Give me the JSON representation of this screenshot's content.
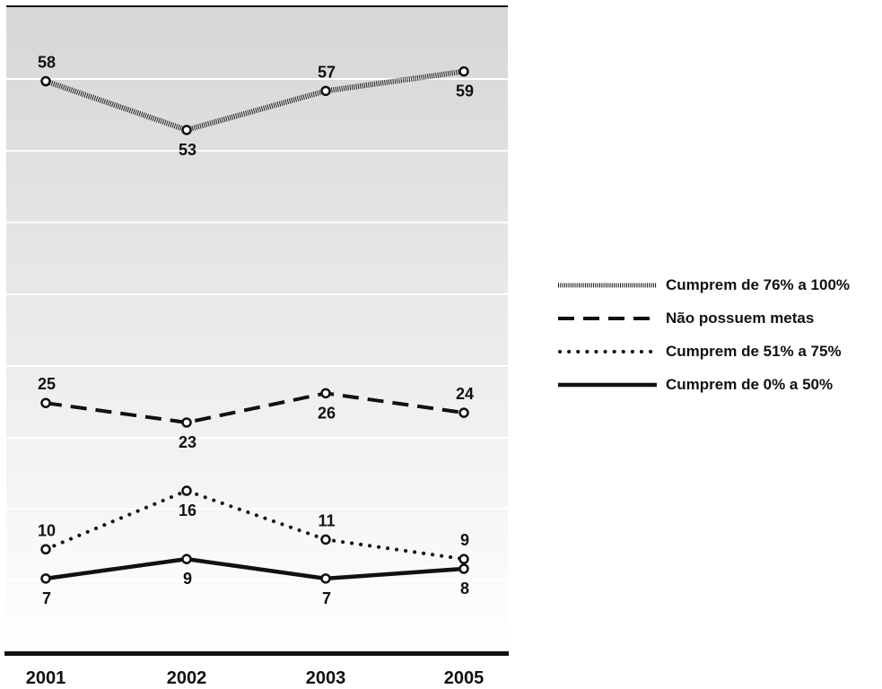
{
  "chart_data": {
    "type": "line",
    "categories": [
      "2001",
      "2002",
      "2003",
      "2005"
    ],
    "series": [
      {
        "name": "Cumprem de 76% a 100%",
        "values": [
          58,
          53,
          57,
          59
        ],
        "style": "hatched"
      },
      {
        "name": "Não possuem metas",
        "values": [
          25,
          23,
          26,
          24
        ],
        "style": "dashed"
      },
      {
        "name": "Cumprem de 51% a 75%",
        "values": [
          10,
          16,
          11,
          9
        ],
        "style": "dotted"
      },
      {
        "name": "Cumprem de 0% a 50%",
        "values": [
          7,
          9,
          7,
          8
        ],
        "style": "solid"
      }
    ],
    "ylim": [
      0,
      65
    ],
    "grid": true,
    "legend_position": "right",
    "colors": {
      "line": "#111111",
      "marker_fill": "#ffffff",
      "background_top": "#d6d6d6",
      "background_bottom": "#ffffff",
      "gridline": "#ffffff"
    }
  }
}
